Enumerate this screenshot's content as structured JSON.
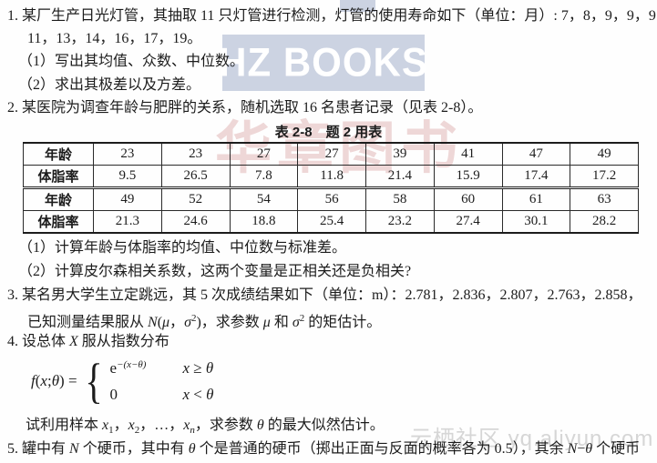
{
  "watermarks": {
    "hz_books": {
      "text": "HZ BOOKS",
      "block_color": "#ccd3e2",
      "text_color": "#ffffff"
    },
    "huazhang": {
      "text": "华章图书",
      "color": "#eed7d7"
    },
    "yunqi": {
      "text": "云栖社区 yq.aliyun.com",
      "color": "#d6d6d6"
    }
  },
  "content": {
    "lines": [
      {
        "name": "problem-1-line-1",
        "runs": [
          {
            "t": "1. 某厂生产日光灯管，其抽取 11 只灯管进行检测，灯管的使用寿命如下（单位：月）: 7，8，9，9，9，"
          }
        ]
      },
      {
        "name": "problem-1-line-2",
        "runs": [
          {
            "t": "11，13，14，16，17，19。"
          }
        ]
      },
      {
        "name": "problem-1-part-1",
        "runs": [
          {
            "t": "（1）写出其均值、众数、中位数。"
          }
        ]
      },
      {
        "name": "problem-1-part-2",
        "runs": [
          {
            "t": "（2）求出其极差以及方差。"
          }
        ]
      },
      {
        "name": "problem-2-intro",
        "runs": [
          {
            "t": "2. 某医院为调查年龄与肥胖的关系，随机选取 16 名患者记录（见表 2-8）。"
          }
        ]
      },
      {
        "name": "problem-2-part-1",
        "runs": [
          {
            "t": "（1）计算年龄与体脂率的均值、中位数与标准差。"
          }
        ]
      },
      {
        "name": "problem-2-part-2",
        "runs": [
          {
            "t": "（2）计算皮尔森相关系数，这两个变量是正相关还是负相关?"
          }
        ]
      },
      {
        "name": "problem-3-line-1",
        "runs": [
          {
            "t": "3. 某名男大学生立定跳远，其 5 次成绩结果如下（单位：m）：2.781，2.836，2.807，2.763，2.858，"
          }
        ]
      },
      {
        "name": "problem-3-line-2",
        "runs": [
          {
            "t": "已知测量结果服从 "
          },
          {
            "t": "N",
            "s": "i"
          },
          {
            "t": "("
          },
          {
            "t": "μ",
            "s": "i"
          },
          {
            "t": "，"
          },
          {
            "t": "σ",
            "s": "i"
          },
          {
            "t": "2",
            "s": "sup"
          },
          {
            "t": ")，求参数 "
          },
          {
            "t": "μ",
            "s": "i"
          },
          {
            "t": " 和 "
          },
          {
            "t": "σ",
            "s": "i"
          },
          {
            "t": "2",
            "s": "sup"
          },
          {
            "t": " 的矩估计。"
          }
        ]
      },
      {
        "name": "problem-4-intro",
        "runs": [
          {
            "t": "4. 设总体 "
          },
          {
            "t": "X",
            "s": "i"
          },
          {
            "t": " 服从指数分布"
          }
        ]
      },
      {
        "name": "problem-4-sample",
        "runs": [
          {
            "t": "试利用样本 "
          },
          {
            "t": "x",
            "s": "i"
          },
          {
            "t": "1",
            "s": "sub"
          },
          {
            "t": "，"
          },
          {
            "t": "x",
            "s": "i"
          },
          {
            "t": "2",
            "s": "sub"
          },
          {
            "t": "，…，"
          },
          {
            "t": "x",
            "s": "i"
          },
          {
            "t": "n",
            "s": "sub i"
          },
          {
            "t": "，求参数 "
          },
          {
            "t": "θ",
            "s": "i"
          },
          {
            "t": " 的最大似然估计。"
          }
        ]
      },
      {
        "name": "problem-5-line-1",
        "runs": [
          {
            "t": "5. 罐中有 "
          },
          {
            "t": "N",
            "s": "i"
          },
          {
            "t": " 个硬币，其中有 "
          },
          {
            "t": "θ",
            "s": "i"
          },
          {
            "t": " 个是普通的硬币（掷出正面与反面的概率各为 0.5），其余 "
          },
          {
            "t": "N",
            "s": "i"
          },
          {
            "t": "−"
          },
          {
            "t": "θ",
            "s": "i"
          },
          {
            "t": " 个硬币"
          }
        ]
      }
    ]
  },
  "table": {
    "caption": "表 2-8　题 2 用表",
    "rows": [
      {
        "label": "年龄",
        "values": [
          "23",
          "23",
          "27",
          "27",
          "39",
          "41",
          "47",
          "49"
        ]
      },
      {
        "label": "体脂率",
        "values": [
          "9.5",
          "26.5",
          "7.8",
          "11.8",
          "21.4",
          "15.9",
          "17.4",
          "17.2"
        ]
      },
      {
        "label": "年龄",
        "values": [
          "49",
          "52",
          "54",
          "56",
          "58",
          "60",
          "61",
          "63"
        ]
      },
      {
        "label": "体脂率",
        "values": [
          "21.3",
          "24.6",
          "18.8",
          "25.4",
          "23.2",
          "27.4",
          "30.1",
          "28.2"
        ]
      }
    ]
  },
  "formula": {
    "lhs_runs": [
      {
        "t": "f",
        "s": "i"
      },
      {
        "t": "("
      },
      {
        "t": "x",
        "s": "i"
      },
      {
        "t": ";"
      },
      {
        "t": "θ",
        "s": "i"
      },
      {
        "t": ") = "
      }
    ],
    "brace": "{",
    "cases": [
      {
        "expr_runs": [
          {
            "t": "e"
          },
          {
            "t": "−(x−θ)",
            "s": "sup i"
          }
        ],
        "cond_runs": [
          {
            "t": "x",
            "s": "i"
          },
          {
            "t": " ≥ "
          },
          {
            "t": "θ",
            "s": "i"
          }
        ]
      },
      {
        "expr_runs": [
          {
            "t": "0"
          }
        ],
        "cond_runs": [
          {
            "t": "x",
            "s": "i"
          },
          {
            "t": " < "
          },
          {
            "t": "θ",
            "s": "i"
          }
        ]
      }
    ]
  }
}
